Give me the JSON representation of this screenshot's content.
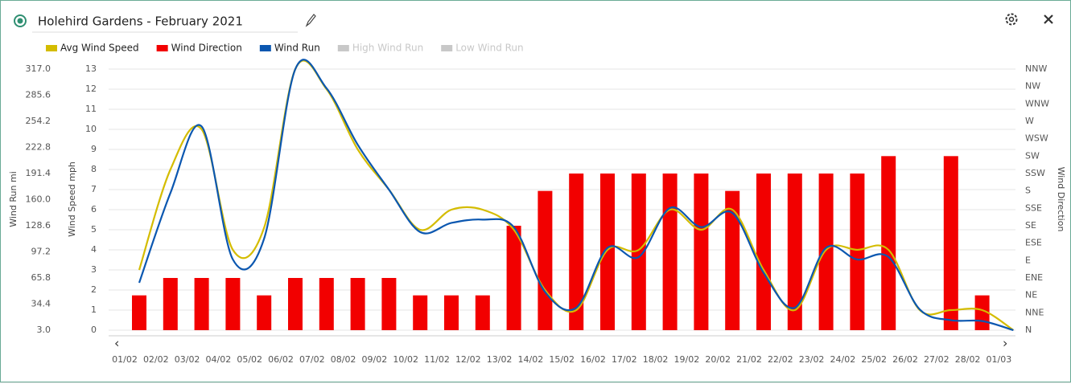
{
  "chart_data": {
    "type": "combo",
    "title": "Holehird Gardens - February 2021",
    "categories": [
      "01/02",
      "02/02",
      "03/02",
      "04/02",
      "05/02",
      "06/02",
      "07/02",
      "08/02",
      "09/02",
      "10/02",
      "11/02",
      "12/02",
      "13/02",
      "14/02",
      "15/02",
      "16/02",
      "17/02",
      "18/02",
      "19/02",
      "20/02",
      "21/02",
      "22/02",
      "23/02",
      "24/02",
      "25/02",
      "26/02",
      "27/02",
      "28/02",
      "01/03"
    ],
    "ylabel": "Wind Speed mph",
    "ylim": [
      0,
      13
    ],
    "yticks": [
      0,
      1,
      2,
      3,
      4,
      5,
      6,
      7,
      8,
      9,
      10,
      11,
      12,
      13
    ],
    "y2label": "Wind Run mi",
    "y2lim": [
      3,
      317
    ],
    "y2ticks": [
      {
        "value": 3,
        "label": "3.0"
      },
      34.4,
      65.8,
      97.2,
      128.6,
      {
        "value": 160,
        "label": "160.0"
      },
      191.4,
      222.8,
      254.2,
      285.6,
      {
        "value": 317,
        "label": "317.0"
      }
    ],
    "y3label": "Wind Direction",
    "y3lim": [
      0,
      337.5
    ],
    "y3ticks": [
      {
        "value": 0,
        "label": "N"
      },
      {
        "value": 22.5,
        "label": "NNE"
      },
      {
        "value": 45,
        "label": "NE"
      },
      {
        "value": 67.5,
        "label": "ENE"
      },
      {
        "value": 90,
        "label": "E"
      },
      {
        "value": 112.5,
        "label": "ESE"
      },
      {
        "value": 135,
        "label": "SE"
      },
      {
        "value": 157.5,
        "label": "SSE"
      },
      {
        "value": 180,
        "label": "S"
      },
      {
        "value": 202.5,
        "label": "SSW"
      },
      {
        "value": 225,
        "label": "SW"
      },
      {
        "value": 247.5,
        "label": "WSW"
      },
      {
        "value": 270,
        "label": "W"
      },
      {
        "value": 292.5,
        "label": "WNW"
      },
      {
        "value": 315,
        "label": "NW"
      },
      {
        "value": 337.5,
        "label": "NNW"
      }
    ],
    "grid": true,
    "series": [
      {
        "name": "Avg Wind Speed",
        "type": "line",
        "axis": "y",
        "color": "#d4bc00",
        "values": [
          3,
          8,
          10,
          4,
          5.1,
          13,
          12,
          9,
          7,
          5,
          6,
          6,
          5,
          2,
          1,
          4,
          4,
          6,
          5,
          6,
          3,
          1,
          4,
          4,
          4,
          1,
          1,
          1,
          0
        ]
      },
      {
        "name": "Wind Direction",
        "type": "bar",
        "axis": "y3",
        "color": "#f20000",
        "values": [
          45,
          67.5,
          67.5,
          67.5,
          45,
          67.5,
          67.5,
          67.5,
          67.5,
          45,
          45,
          45,
          135,
          180,
          202.5,
          202.5,
          202.5,
          202.5,
          202.5,
          180,
          202.5,
          202.5,
          202.5,
          202.5,
          225,
          null,
          225,
          45,
          null
        ]
      },
      {
        "name": "Wind Run",
        "type": "line",
        "axis": "y2",
        "color": "#0b57b0",
        "values": [
          60,
          168,
          248,
          88,
          113,
          317,
          294,
          226,
          172,
          121,
          132,
          136,
          127,
          49,
          30,
          102,
          91,
          150,
          127,
          144,
          72,
          30,
          102,
          88,
          91,
          28,
          15,
          14,
          3
        ]
      },
      {
        "name": "High Wind Run",
        "type": "line",
        "axis": "y2",
        "color": "#c8c8c8",
        "hidden": true
      },
      {
        "name": "Low Wind Run",
        "type": "line",
        "axis": "y2",
        "color": "#c8c8c8",
        "hidden": true
      }
    ]
  }
}
